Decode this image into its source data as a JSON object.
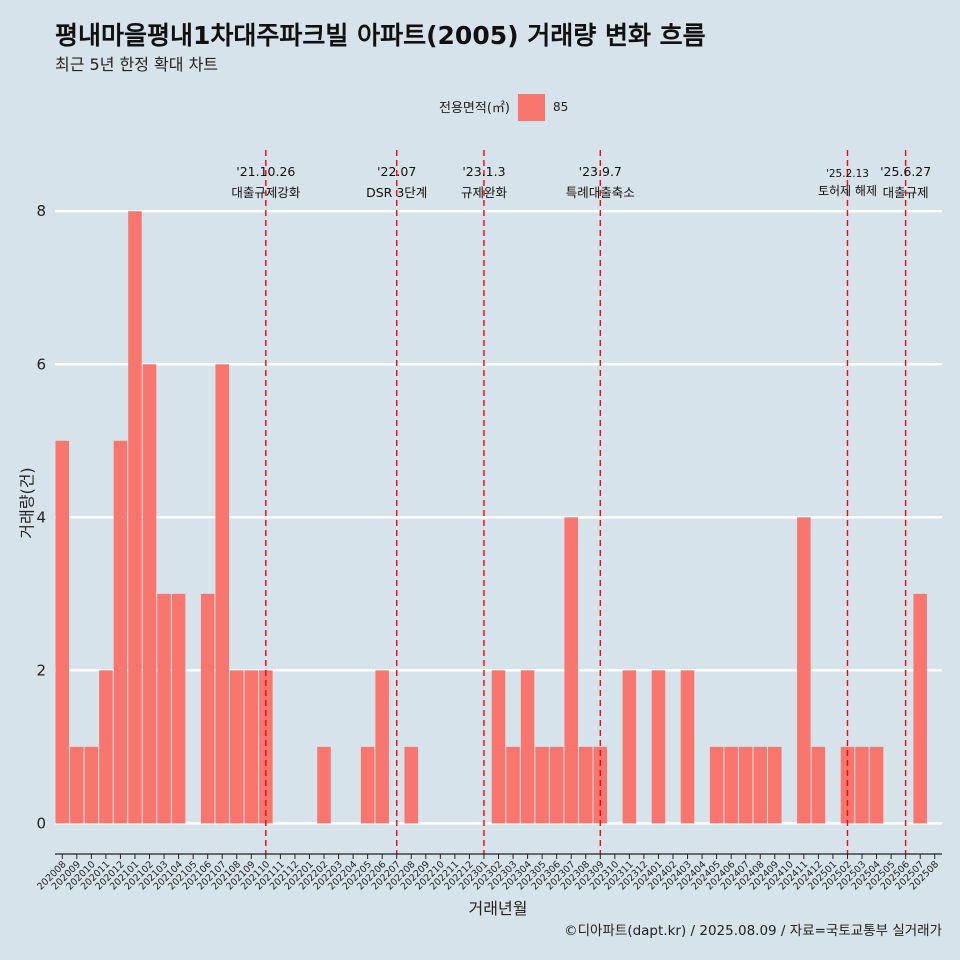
{
  "chart_data": {
    "type": "bar",
    "title": "평내마을평내1차대주파크빌 아파트(2005) 거래량 변화 흐름",
    "subtitle": "최근 5년 한정 확대 차트",
    "xlabel": "거래년월",
    "ylabel": "거래량(건)",
    "caption": "©디아파트(dapt.kr) / 2025.08.09 / 자료=국토교통부 실거래가",
    "legend": {
      "title": "전용면적(㎡)",
      "position": "top"
    },
    "categories": [
      "202008",
      "202009",
      "202010",
      "202011",
      "202012",
      "202101",
      "202102",
      "202103",
      "202104",
      "202105",
      "202106",
      "202107",
      "202108",
      "202109",
      "202110",
      "202111",
      "202112",
      "202201",
      "202202",
      "202203",
      "202204",
      "202205",
      "202206",
      "202207",
      "202208",
      "202209",
      "202210",
      "202211",
      "202212",
      "202301",
      "202302",
      "202303",
      "202304",
      "202305",
      "202306",
      "202307",
      "202308",
      "202309",
      "202310",
      "202311",
      "202312",
      "202401",
      "202402",
      "202403",
      "202404",
      "202405",
      "202406",
      "202407",
      "202408",
      "202409",
      "202410",
      "202411",
      "202412",
      "202501",
      "202502",
      "202503",
      "202504",
      "202505",
      "202506",
      "202507",
      "202508"
    ],
    "series": [
      {
        "name": "85",
        "values": [
          5,
          1,
          1,
          2,
          5,
          8,
          6,
          3,
          3,
          0,
          3,
          6,
          2,
          2,
          2,
          0,
          0,
          0,
          1,
          0,
          0,
          1,
          2,
          0,
          1,
          0,
          0,
          0,
          0,
          0,
          2,
          1,
          2,
          1,
          1,
          4,
          1,
          1,
          0,
          2,
          0,
          2,
          0,
          2,
          0,
          1,
          1,
          1,
          1,
          1,
          0,
          4,
          1,
          0,
          1,
          1,
          1,
          0,
          0,
          3,
          0
        ]
      }
    ],
    "ylim": [
      -0.4,
      8.8
    ],
    "yticks": [
      0,
      2,
      4,
      6,
      8
    ],
    "grid": "horizontal",
    "vlines": [
      {
        "x": "202110",
        "date": "'21.10.26",
        "label": "대출규제강화"
      },
      {
        "x": "202207",
        "date": "'22.07",
        "label": "DSR 3단계"
      },
      {
        "x": "202301",
        "date": "'23.1.3",
        "label": "규제완화"
      },
      {
        "x": "202309",
        "date": "'23.9.7",
        "label": "특례대출축소"
      },
      {
        "x": "202502",
        "date": "'25.2.13",
        "label": "토허제 해제"
      },
      {
        "x": "202506",
        "date": "'25.6.27",
        "label": "대출규제"
      }
    ],
    "colors": {
      "bar": "#f8766d",
      "event_line": "#ff0000",
      "background": "#d6e3ea",
      "grid": "#ffffff"
    }
  }
}
